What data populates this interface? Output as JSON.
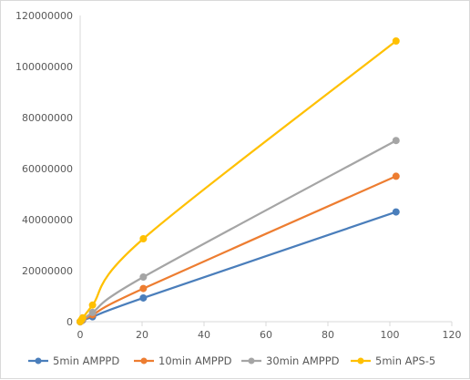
{
  "chart_data": {
    "type": "line",
    "title": "",
    "xlabel": "",
    "ylabel": "",
    "xlim": [
      0,
      120
    ],
    "ylim": [
      0,
      120000000
    ],
    "x_ticks": [
      0,
      20,
      40,
      60,
      80,
      100,
      120
    ],
    "y_ticks": [
      0,
      20000000,
      40000000,
      60000000,
      80000000,
      100000000,
      120000000
    ],
    "grid": false,
    "legend_position": "bottom",
    "series": [
      {
        "name": "5min AMPPD",
        "color": "#4a7ebb",
        "x": [
          0,
          0.4,
          0.8,
          4,
          20.4,
          102
        ],
        "y": [
          0,
          300000,
          600000,
          1900000,
          9300000,
          43000000
        ]
      },
      {
        "name": "10min AMPPD",
        "color": "#ed7d31",
        "x": [
          0,
          0.4,
          0.8,
          4,
          20.4,
          102
        ],
        "y": [
          0,
          400000,
          800000,
          2700000,
          13000000,
          57000000
        ]
      },
      {
        "name": "30min AMPPD",
        "color": "#a5a5a5",
        "x": [
          0,
          0.4,
          0.8,
          4,
          20.4,
          102
        ],
        "y": [
          0,
          500000,
          1000000,
          3600000,
          17500000,
          71000000
        ]
      },
      {
        "name": "5min APS-5",
        "color": "#ffc000",
        "x": [
          0,
          0.4,
          0.8,
          4,
          20.4,
          102
        ],
        "y": [
          0,
          700000,
          1500000,
          6500000,
          32500000,
          110000000
        ]
      }
    ]
  }
}
